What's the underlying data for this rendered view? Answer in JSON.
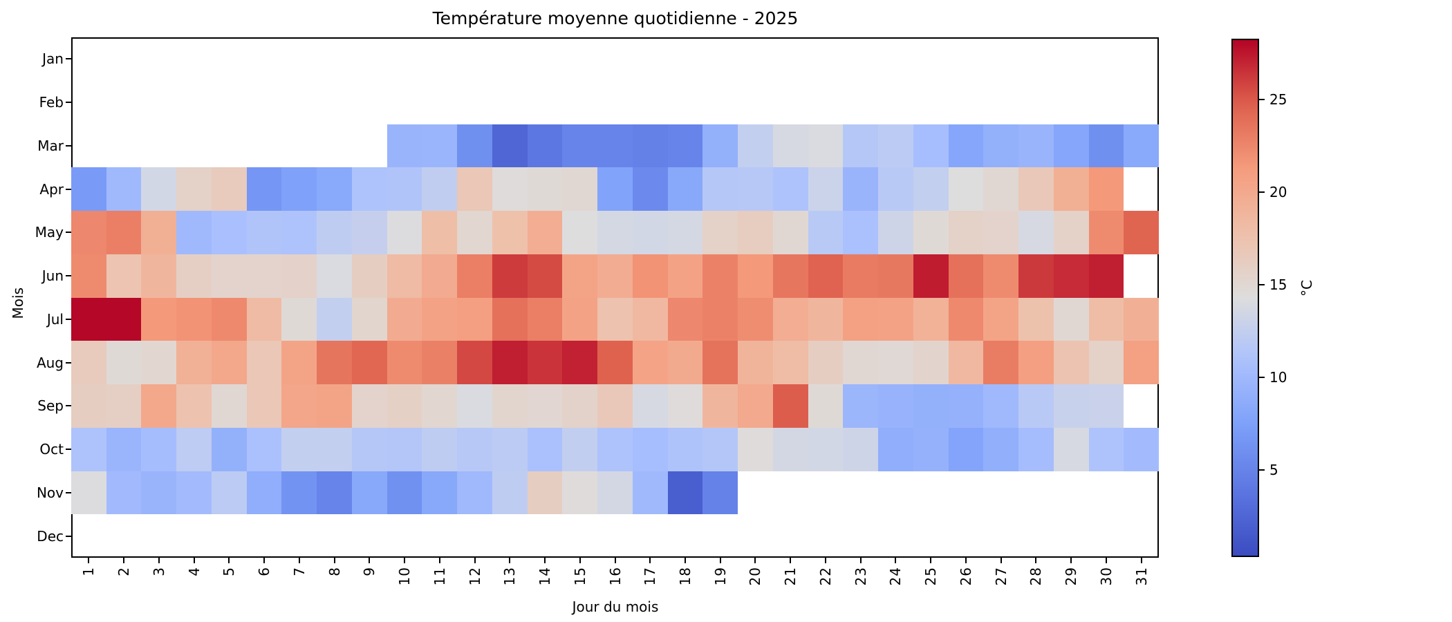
{
  "title": "Température moyenne quotidienne - 2025",
  "chart_data": {
    "type": "heatmap",
    "title": "Température moyenne quotidienne - 2025",
    "xlabel": "Jour du mois",
    "ylabel": "Mois",
    "colormap": "coolwarm",
    "vmin": 0.3,
    "vmax": 28.3,
    "grid": false,
    "x_ticks": [
      "1",
      "2",
      "3",
      "4",
      "5",
      "6",
      "7",
      "8",
      "9",
      "10",
      "11",
      "12",
      "13",
      "14",
      "15",
      "16",
      "17",
      "18",
      "19",
      "20",
      "21",
      "22",
      "23",
      "24",
      "25",
      "26",
      "27",
      "28",
      "29",
      "30",
      "31"
    ],
    "y_ticks": [
      "Jan",
      "Feb",
      "Mar",
      "Apr",
      "May",
      "Jun",
      "Jul",
      "Aug",
      "Sep",
      "Oct",
      "Nov",
      "Dec"
    ],
    "colorbar": {
      "label": "°C",
      "ticks": [
        5,
        10,
        15,
        20,
        25
      ]
    },
    "rows": [
      {
        "month": "Jan",
        "values": [
          null,
          null,
          null,
          null,
          null,
          null,
          null,
          null,
          null,
          null,
          null,
          null,
          null,
          null,
          null,
          null,
          null,
          null,
          null,
          null,
          null,
          null,
          null,
          null,
          null,
          null,
          null,
          null,
          null,
          null,
          null
        ]
      },
      {
        "month": "Feb",
        "values": [
          null,
          null,
          null,
          null,
          null,
          null,
          null,
          null,
          null,
          null,
          null,
          null,
          null,
          null,
          null,
          null,
          null,
          null,
          null,
          null,
          null,
          null,
          null,
          null,
          null,
          null,
          null,
          null,
          null,
          null,
          null
        ]
      },
      {
        "month": "Mar",
        "values": [
          null,
          null,
          null,
          null,
          null,
          null,
          null,
          null,
          null,
          9.5,
          9.6,
          6.0,
          2.5,
          3.8,
          5.0,
          5.0,
          4.7,
          5.0,
          9.0,
          12.5,
          13.8,
          14.0,
          11.5,
          12.0,
          10.5,
          8.0,
          9.0,
          9.5,
          8.0,
          6.0,
          8.3
        ]
      },
      {
        "month": "Apr",
        "values": [
          7.0,
          10.0,
          13.5,
          15.8,
          16.5,
          6.5,
          7.5,
          8.3,
          11.0,
          11.2,
          12.3,
          17.0,
          14.5,
          14.8,
          15.0,
          7.7,
          5.5,
          8.2,
          11.5,
          11.7,
          11.0,
          13.0,
          9.5,
          11.8,
          12.5,
          14.3,
          15.0,
          16.8,
          19.5,
          21.5,
          null
        ]
      },
      {
        "month": "May",
        "values": [
          22.5,
          23.0,
          19.5,
          10.0,
          10.7,
          11.2,
          11.0,
          12.2,
          12.6,
          14.2,
          18.0,
          15.2,
          17.7,
          19.6,
          14.3,
          13.7,
          13.5,
          13.7,
          15.8,
          16.3,
          15.0,
          11.8,
          10.8,
          13.2,
          14.8,
          15.8,
          15.5,
          13.8,
          15.8,
          22.3,
          24.5
        ]
      },
      {
        "month": "Jun",
        "values": [
          22.3,
          17.3,
          18.8,
          16.0,
          15.5,
          15.5,
          15.7,
          14.0,
          16.2,
          18.3,
          19.8,
          23.0,
          26.2,
          25.6,
          20.5,
          19.7,
          21.8,
          20.7,
          22.8,
          21.5,
          23.5,
          24.6,
          23.2,
          23.4,
          27.4,
          23.8,
          22.3,
          26.3,
          26.8,
          27.3,
          null
        ]
      },
      {
        "month": "Jul",
        "values": [
          28.2,
          28.2,
          21.5,
          21.8,
          22.4,
          18.3,
          14.8,
          12.5,
          15.3,
          19.8,
          20.7,
          21.0,
          23.8,
          23.0,
          20.7,
          17.5,
          18.6,
          22.5,
          22.8,
          22.2,
          19.6,
          18.8,
          20.8,
          20.7,
          19.2,
          22.4,
          20.5,
          17.6,
          15.0,
          18.1,
          19.4
        ]
      },
      {
        "month": "Aug",
        "values": [
          16.5,
          14.8,
          15.2,
          19.3,
          20.2,
          16.9,
          20.5,
          23.6,
          24.4,
          22.3,
          22.9,
          25.7,
          27.3,
          26.5,
          27.2,
          24.7,
          20.6,
          19.9,
          23.7,
          19.0,
          18.2,
          16.2,
          15.0,
          14.9,
          15.4,
          18.6,
          23.1,
          21.0,
          17.4,
          15.8,
          20.9
        ]
      },
      {
        "month": "Sep",
        "values": [
          16.2,
          16.0,
          20.1,
          17.5,
          15.0,
          17.0,
          20.3,
          20.5,
          15.5,
          15.9,
          15.2,
          14.0,
          15.3,
          15.1,
          15.6,
          16.8,
          13.8,
          14.5,
          18.8,
          20.0,
          24.9,
          14.8,
          9.7,
          9.4,
          9.0,
          9.2,
          10.0,
          11.8,
          12.8,
          12.9,
          null
        ]
      },
      {
        "month": "Oct",
        "values": [
          11.0,
          9.6,
          10.4,
          12.1,
          9.0,
          10.8,
          12.5,
          12.5,
          11.5,
          11.4,
          12.2,
          11.7,
          12.0,
          10.8,
          12.4,
          11.0,
          10.5,
          11.1,
          11.4,
          14.5,
          13.6,
          13.5,
          13.2,
          8.8,
          9.2,
          7.8,
          8.9,
          10.4,
          13.8,
          11.0,
          10.2
        ]
      },
      {
        "month": "Nov",
        "values": [
          14.2,
          10.1,
          9.5,
          10.2,
          12.0,
          8.8,
          6.3,
          5.0,
          8.2,
          6.1,
          8.2,
          10.0,
          12.2,
          16.2,
          14.5,
          13.6,
          10.0,
          1.8,
          4.8,
          null,
          null,
          null,
          null,
          null,
          null,
          null,
          null,
          null,
          null,
          null,
          null
        ]
      },
      {
        "month": "Dec",
        "values": [
          null,
          null,
          null,
          null,
          null,
          null,
          null,
          null,
          null,
          null,
          null,
          null,
          null,
          null,
          null,
          null,
          null,
          null,
          null,
          null,
          null,
          null,
          null,
          null,
          null,
          null,
          null,
          null,
          null,
          null,
          null
        ]
      }
    ]
  }
}
